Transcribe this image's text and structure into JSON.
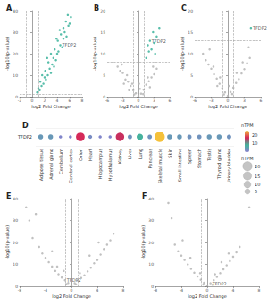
{
  "chart_data": [
    {
      "type": "scatter",
      "title": "A",
      "xlabel": "log2 Fold Change",
      "ylabel": "-log10(p-value)",
      "xlim": [
        -2,
        8
      ],
      "xticks": [
        -2,
        0,
        2,
        4,
        6,
        8
      ],
      "ylim": [
        0,
        40
      ],
      "yticks": [
        0,
        10,
        20,
        30,
        40
      ],
      "grid": false,
      "vlines": [
        -1,
        1
      ],
      "hline": 1.3,
      "series": [
        {
          "color": "#3bb39b",
          "x": [
            0.8,
            1.0,
            1.2,
            1.5,
            1.3,
            1.8,
            2.0,
            2.2,
            2.5,
            2.1,
            2.8,
            3.0,
            3.2,
            2.6,
            3.5,
            3.4,
            3.8,
            4.0,
            3.6,
            4.2,
            4.5,
            4.1,
            4.8,
            5.0,
            4.6,
            5.2,
            5.5,
            5.0,
            5.8,
            5.4,
            6.0,
            6.2,
            5.7,
            3.0,
            2.4,
            3.9,
            1.6,
            4.4
          ],
          "values": [
            2,
            4,
            3,
            5,
            7,
            6,
            9,
            8,
            10,
            12,
            13,
            11,
            15,
            16,
            14,
            18,
            17,
            20,
            22,
            21,
            24,
            26,
            23,
            27,
            29,
            30,
            28,
            32,
            33,
            35,
            34,
            37,
            38,
            20,
            18,
            27,
            10,
            31
          ]
        }
      ],
      "annotations": [
        {
          "text": "TFDP2",
          "x": 4.5,
          "y": 24
        }
      ]
    },
    {
      "type": "scatter",
      "title": "B",
      "xlabel": "log2 Fold Change",
      "ylabel": "-log10(p-value)",
      "xlim": [
        -6,
        6
      ],
      "xticks": [
        -6,
        -3,
        0,
        3,
        6
      ],
      "ylim": [
        0,
        20
      ],
      "yticks": [
        0,
        5,
        10,
        15,
        20
      ],
      "grid": false,
      "vlines": [
        -1,
        1
      ],
      "hline": 8,
      "series": [
        {
          "color": "#b5b5b5",
          "x": [
            -4,
            -3.5,
            -3,
            -2.5,
            -2,
            -1.5,
            -1,
            -0.5,
            0,
            0.5,
            1,
            1.5,
            2,
            2.5,
            3,
            3.5,
            -2.2,
            -1.2,
            0.3,
            1.8,
            -3.2,
            2.8,
            -0.8,
            0.9,
            -1.8,
            2.2,
            0.1,
            -2.8
          ],
          "values": [
            7,
            6,
            5.5,
            4,
            3.5,
            2.5,
            1.5,
            0.8,
            0.2,
            0.7,
            1.6,
            2.8,
            3.6,
            4.5,
            5.2,
            6.5,
            5,
            3,
            1.8,
            4.5,
            7.5,
            7,
            0.5,
            0.6,
            1.5,
            2.2,
            3,
            3
          ]
        },
        {
          "color": "#3bb39b",
          "x": [
            1.5,
            2,
            2.5,
            3,
            2.2,
            3.5,
            1.8,
            2.8,
            3.2,
            4
          ],
          "values": [
            9,
            10.5,
            11,
            12.5,
            13,
            14,
            12,
            15,
            10,
            16
          ]
        }
      ],
      "annotations": [
        {
          "text": "TFDP2",
          "x": 2.2,
          "y": 13
        }
      ]
    },
    {
      "type": "scatter",
      "title": "C",
      "xlabel": "log2 Fold Change",
      "ylabel": "-log10(p-value)",
      "xlim": [
        -6,
        6
      ],
      "xticks": [
        -6,
        -3,
        0,
        3,
        6
      ],
      "ylim": [
        0,
        20
      ],
      "yticks": [
        0,
        5,
        10,
        15,
        20
      ],
      "grid": false,
      "vlines": [
        -1,
        1
      ],
      "hline": 13,
      "series": [
        {
          "color": "#b5b5b5",
          "x": [
            -4.5,
            -4,
            -3.5,
            -3,
            -2.5,
            -2,
            -1.5,
            -1,
            -0.5,
            0,
            0.5,
            1,
            1.5,
            2,
            2.5,
            3,
            3.5,
            4,
            -2.6,
            -1.4,
            0.2,
            1.6,
            2.7,
            -3.3,
            0.8,
            -0.7,
            3.8,
            -1.9
          ],
          "values": [
            10,
            8.5,
            7.5,
            6.5,
            5.2,
            4.2,
            3,
            2,
            1,
            0.2,
            1.1,
            2.1,
            3.2,
            4.1,
            5.4,
            6.4,
            7.8,
            9,
            7,
            4.5,
            2.5,
            5.5,
            8,
            11,
            0.6,
            0.5,
            11.5,
            2.5
          ]
        },
        {
          "color": "#3bb39b",
          "x": [
            4.2
          ],
          "values": [
            16
          ]
        }
      ],
      "annotations": [
        {
          "text": "TFDP2",
          "x": 4.2,
          "y": 16
        }
      ]
    },
    {
      "type": "dot",
      "title": "D",
      "row": "TFDP2",
      "legend_title": "nTPM",
      "categories": [
        "Adipose tissue",
        "Adrenal gland",
        "Cerebellum",
        "Cerebral cortex",
        "Colon",
        "Heart",
        "Hippocampus",
        "Hypothalamus",
        "Kidney",
        "Liver",
        "Lung",
        "Pancreas",
        "Skeletal muscle",
        "Skin",
        "Small intestine",
        "Spleen",
        "Stomach",
        "Testis",
        "Thyroid gland",
        "Urinary bladder"
      ],
      "values": [
        4,
        4,
        1,
        1,
        17,
        2,
        1,
        1,
        16,
        3,
        8,
        3,
        25,
        4,
        4,
        3,
        3,
        4,
        4,
        3
      ],
      "color_range": [
        0,
        25
      ],
      "color_ticks": [
        10,
        20
      ],
      "colorscale": [
        "#8a7fd0",
        "#43b49b",
        "#d4245a",
        "#f5c13a"
      ],
      "size_legend": [
        20,
        15,
        10,
        5
      ]
    },
    {
      "type": "scatter",
      "title": "E",
      "xlabel": "log2 Fold Change",
      "ylabel": "-log10(p-value)",
      "xlim": [
        -8,
        8
      ],
      "xticks": [
        -8,
        -4,
        0,
        4,
        8
      ],
      "ylim": [
        0,
        40
      ],
      "yticks": [
        0,
        10,
        20,
        30,
        40
      ],
      "grid": false,
      "vlines": [
        -1,
        1
      ],
      "hline": 28,
      "series": [
        {
          "color": "#b5b5b5",
          "x": [
            -6,
            -5,
            -4.5,
            -4,
            -3.5,
            -3,
            -2.5,
            -2,
            -1.5,
            -1,
            -0.5,
            0,
            0.5,
            1,
            1.5,
            2,
            2.5,
            3,
            3.5,
            4,
            4.5,
            5,
            5.5,
            6,
            -6.5,
            -5.5,
            -7,
            6.5,
            -3,
            2.8,
            -1.2,
            1.3,
            -0.8,
            0.7,
            -2.2,
            4.2
          ],
          "values": [
            22,
            18,
            15,
            13,
            11,
            9,
            7,
            5.5,
            4,
            2.8,
            1.5,
            0.3,
            1.4,
            2.6,
            3.8,
            5,
            6.8,
            8.5,
            10.5,
            12,
            14.5,
            17,
            19,
            21,
            30,
            33,
            36,
            24,
            16,
            14,
            7,
            6,
            1,
            0.9,
            9,
            20
          ]
        }
      ],
      "annotations": [
        {
          "text": "TFDP2",
          "x": -1,
          "y": 2.8
        }
      ]
    },
    {
      "type": "scatter",
      "title": "F",
      "xlabel": "log2 Fold Change",
      "ylabel": "-log10(p-value)",
      "xlim": [
        -8,
        8
      ],
      "xticks": [
        -8,
        -4,
        0,
        4,
        8
      ],
      "ylim": [
        0,
        40
      ],
      "yticks": [
        0,
        10,
        20,
        30,
        40
      ],
      "grid": false,
      "vlines": [
        -1,
        1
      ],
      "hline": 24,
      "series": [
        {
          "color": "#b5b5b5",
          "x": [
            -5,
            -4.5,
            -4,
            -3.5,
            -3,
            -2.5,
            -2,
            -1.5,
            -1,
            -0.5,
            0,
            0.5,
            1,
            1.5,
            2,
            2.5,
            3,
            3.5,
            4,
            4.5,
            5,
            -6,
            6.5,
            -5.5,
            -2.6,
            2.2,
            -1.1,
            1.2,
            -0.6,
            0.8,
            3.3,
            -3.8
          ],
          "values": [
            19,
            16,
            14,
            12,
            10,
            8,
            6.2,
            4.5,
            3,
            1.6,
            0.3,
            1.4,
            2.8,
            4.3,
            6,
            7.8,
            9.6,
            11.5,
            13.5,
            15.5,
            18,
            38,
            36,
            31,
            13,
            11,
            6,
            5.5,
            0.8,
            0.7,
            15,
            21
          ]
        }
      ],
      "annotations": [
        {
          "text": "TFDP2",
          "x": 0.5,
          "y": 1.4
        }
      ]
    }
  ]
}
